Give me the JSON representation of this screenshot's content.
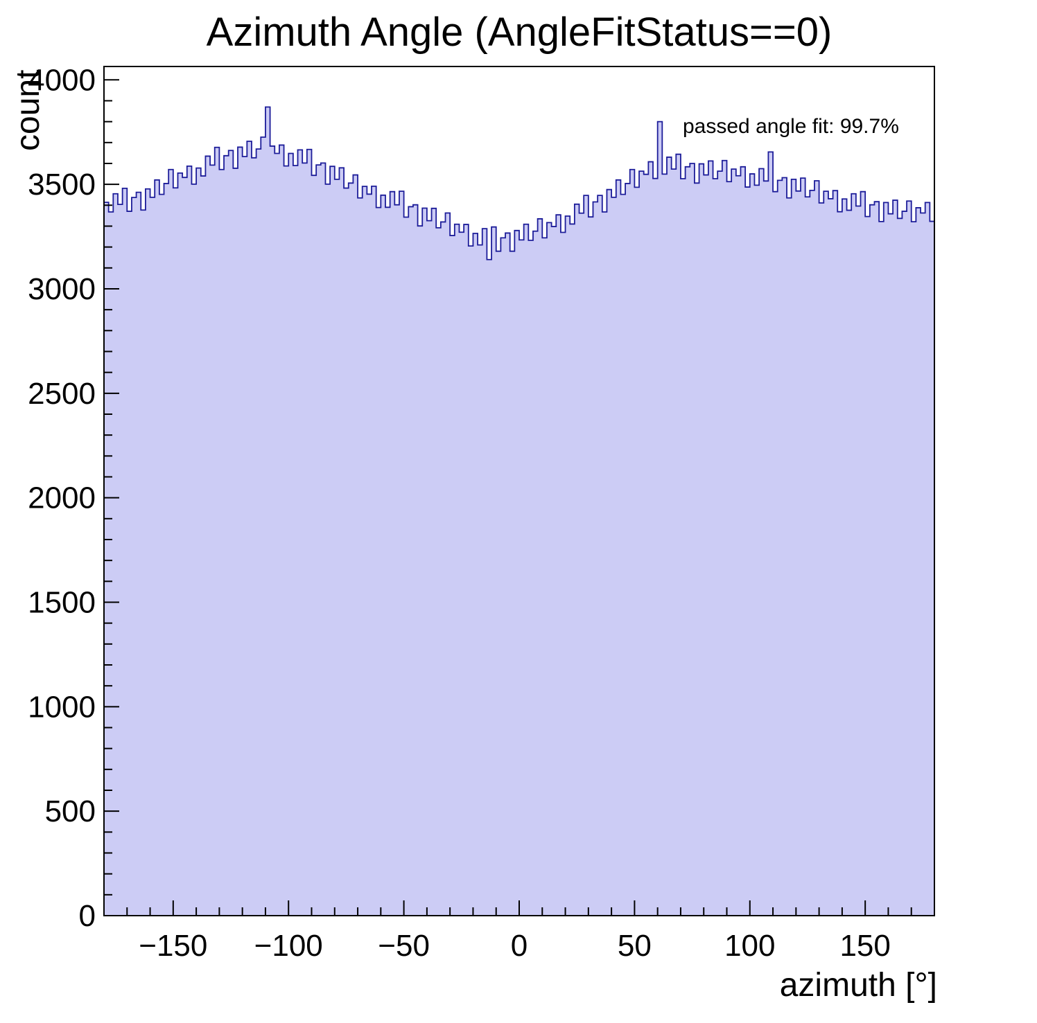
{
  "page": {
    "background_color": "#ffffff"
  },
  "chart_data": {
    "type": "bar",
    "subtype": "step-histogram",
    "title": "Azimuth Angle (AngleFitStatus==0)",
    "xlabel": "azimuth [°]",
    "ylabel": "count",
    "annotation": "passed angle fit: 99.7%",
    "grid": false,
    "legend_position": "none",
    "xlim": [
      -180,
      180
    ],
    "ylim": [
      0,
      4064
    ],
    "x_ticks": [
      -150,
      -100,
      -50,
      0,
      50,
      100,
      150
    ],
    "y_ticks": [
      0,
      500,
      1000,
      1500,
      2000,
      2500,
      3000,
      3500,
      4000
    ],
    "x_minor_step": 10,
    "y_minor_step": 100,
    "x_start": -180,
    "bin_width": 2,
    "fill_color": "#ccccf5",
    "line_color": "#1c1c99",
    "axis_color": "#000000",
    "values": [
      3414,
      3368,
      3455,
      3404,
      3481,
      3371,
      3437,
      3462,
      3377,
      3478,
      3438,
      3521,
      3452,
      3504,
      3571,
      3483,
      3554,
      3533,
      3587,
      3501,
      3578,
      3540,
      3635,
      3592,
      3677,
      3571,
      3637,
      3662,
      3577,
      3678,
      3633,
      3706,
      3627,
      3669,
      3726,
      3870,
      3683,
      3648,
      3688,
      3588,
      3648,
      3590,
      3665,
      3602,
      3667,
      3543,
      3593,
      3602,
      3501,
      3586,
      3524,
      3579,
      3482,
      3506,
      3545,
      3435,
      3490,
      3453,
      3491,
      3389,
      3448,
      3390,
      3465,
      3402,
      3467,
      3343,
      3393,
      3402,
      3301,
      3386,
      3326,
      3385,
      3292,
      3320,
      3363,
      3255,
      3309,
      3271,
      3308,
      3205,
      3265,
      3210,
      3288,
      3140,
      3296,
      3180,
      3244,
      3267,
      3180,
      3279,
      3234,
      3309,
      3232,
      3276,
      3335,
      3244,
      3317,
      3298,
      3354,
      3270,
      3348,
      3310,
      3405,
      3362,
      3447,
      3344,
      3416,
      3447,
      3368,
      3475,
      3438,
      3521,
      3452,
      3504,
      3571,
      3486,
      3563,
      3548,
      3608,
      3528,
      3800,
      3549,
      3630,
      3573,
      3644,
      3527,
      3584,
      3600,
      3506,
      3598,
      3545,
      3612,
      3527,
      3563,
      3614,
      3513,
      3573,
      3541,
      3584,
      3487,
      3550,
      3496,
      3575,
      3516,
      3655,
      3465,
      3519,
      3532,
      3435,
      3524,
      3468,
      3530,
      3440,
      3471,
      3517,
      3411,
      3467,
      3431,
      3470,
      3369,
      3430,
      3376,
      3455,
      3396,
      3465,
      3346,
      3402,
      3417,
      3322,
      3413,
      3359,
      3424,
      3337,
      3371,
      3420,
      3321,
      3388,
      3363,
      3413,
      3323
    ]
  }
}
